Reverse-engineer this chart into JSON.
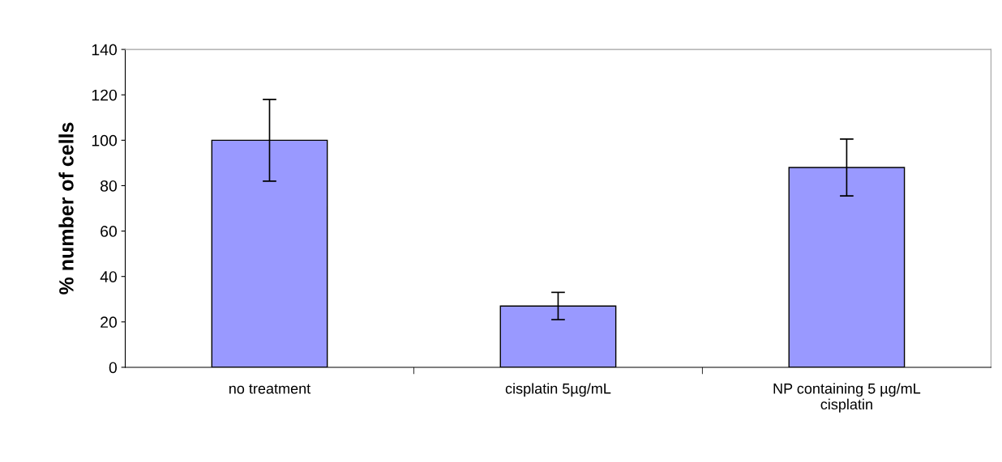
{
  "chart_data": {
    "type": "bar",
    "ylabel": "% number of cells",
    "categories": [
      "no treatment",
      "cisplatin 5µg/mL",
      "NP containing 5 µg/mL\ncisplatin"
    ],
    "values": [
      100,
      27,
      88
    ],
    "errors": [
      18,
      6,
      12.5
    ],
    "color": "#9999ff",
    "ylim": [
      0,
      140
    ],
    "yticks": [
      0,
      20,
      40,
      60,
      80,
      100,
      120,
      140
    ],
    "grid": false
  }
}
